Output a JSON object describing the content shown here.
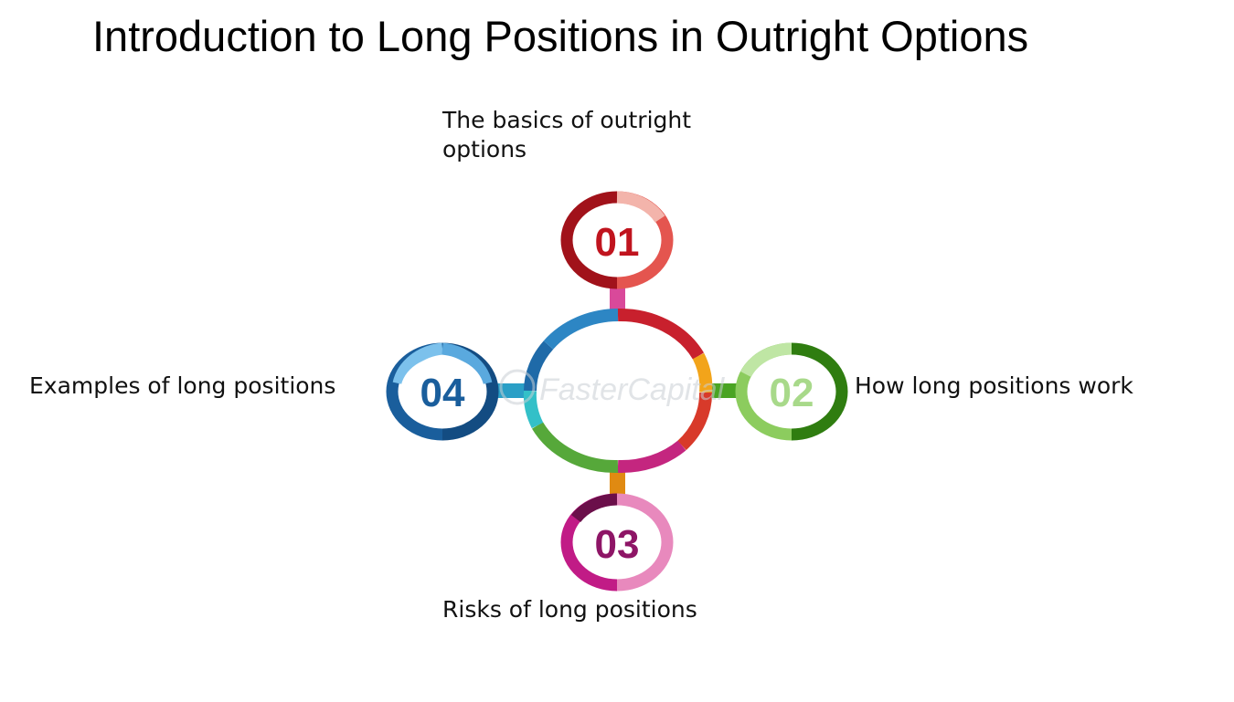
{
  "title": "Introduction to Long Positions in Outright Options",
  "watermark": "FasterCapital",
  "items": [
    {
      "number": "01",
      "label": "The basics of outright options",
      "color": "#c0141e",
      "light": "#f0a0a0"
    },
    {
      "number": "02",
      "label": "How long positions work",
      "color": "#3d8f16",
      "light": "#a8d98a"
    },
    {
      "number": "03",
      "label": "Risks of long positions",
      "color": "#8e1566",
      "light": "#e78bbd"
    },
    {
      "number": "04",
      "label": "Examples of long positions",
      "color": "#1a5e9c",
      "light": "#6fb6e4"
    }
  ]
}
